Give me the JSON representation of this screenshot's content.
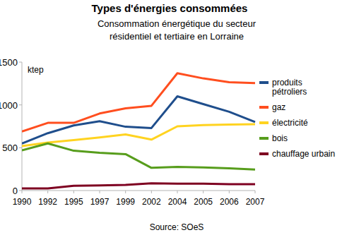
{
  "chart_data": {
    "type": "line",
    "title": "Types d'énergies consommées",
    "subtitle": [
      "Consommation énergétique du secteur",
      "résidentiel et tertiaire en Lorraine"
    ],
    "y_label": "ktep",
    "source": "Source: SOeS",
    "categories": [
      "1990",
      "1992",
      "1995",
      "1997",
      "1999",
      "2002",
      "2004",
      "2005",
      "2006",
      "2007"
    ],
    "series": [
      {
        "name": "produits pétroliers",
        "color": "#1f4e8c",
        "values": [
          550,
          670,
          760,
          810,
          745,
          730,
          1100,
          1010,
          920,
          800
        ]
      },
      {
        "name": "gaz",
        "color": "#ff4e1f",
        "values": [
          690,
          790,
          790,
          900,
          960,
          990,
          1370,
          1310,
          1265,
          1255
        ]
      },
      {
        "name": "électricité",
        "color": "#ffd320",
        "values": [
          520,
          560,
          590,
          620,
          655,
          595,
          750,
          765,
          770,
          775
        ]
      },
      {
        "name": "bois",
        "color": "#579d1c",
        "values": [
          470,
          550,
          465,
          440,
          425,
          265,
          275,
          270,
          260,
          245
        ]
      },
      {
        "name": "chauffage urbain",
        "color": "#7e0021",
        "values": [
          25,
          25,
          55,
          60,
          65,
          85,
          80,
          80,
          75,
          75
        ]
      }
    ],
    "ylim": [
      0,
      1500
    ],
    "yticks": [
      0,
      500,
      1000,
      1500
    ],
    "grid": false,
    "legend": "right"
  }
}
